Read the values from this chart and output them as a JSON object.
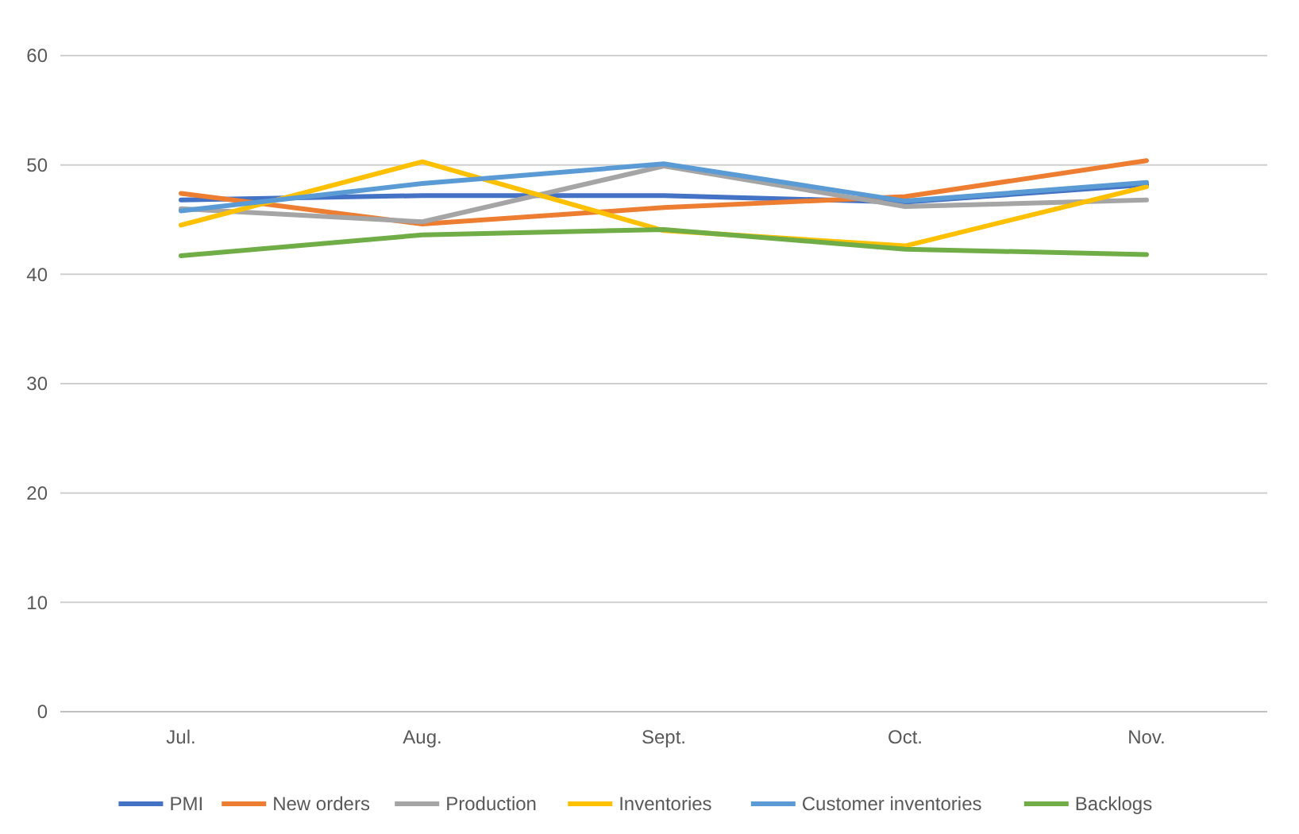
{
  "chart_data": {
    "type": "line",
    "categories": [
      "Jul.",
      "Aug.",
      "Sept.",
      "Oct.",
      "Nov."
    ],
    "ylim": [
      0,
      60
    ],
    "yticks": [
      0,
      10,
      20,
      30,
      40,
      50,
      60
    ],
    "grid": "y",
    "legend": "bottom",
    "marker": "none",
    "series": [
      {
        "name": "PMI",
        "color": "#4472c4",
        "values": [
          46.8,
          47.2,
          47.2,
          46.6,
          48.2
        ]
      },
      {
        "name": "New orders",
        "color": "#ed7d31",
        "values": [
          47.4,
          44.6,
          46.1,
          47.1,
          50.4
        ]
      },
      {
        "name": "Production",
        "color": "#a5a5a5",
        "values": [
          46.0,
          44.8,
          49.9,
          46.2,
          46.8
        ]
      },
      {
        "name": "Inventories",
        "color": "#ffc000",
        "values": [
          44.5,
          50.3,
          44.0,
          42.6,
          48.0
        ]
      },
      {
        "name": "Customer inventories",
        "color": "#5b9bd5",
        "values": [
          45.8,
          48.3,
          50.1,
          46.7,
          48.4
        ]
      },
      {
        "name": "Backlogs",
        "color": "#70ad47",
        "values": [
          41.7,
          43.6,
          44.1,
          42.3,
          41.8
        ]
      }
    ]
  }
}
